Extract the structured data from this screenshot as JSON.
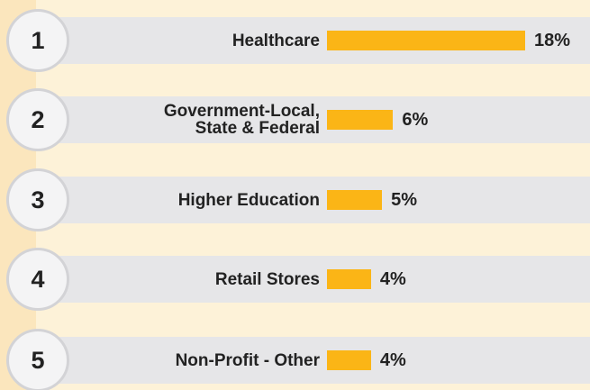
{
  "chart_data": {
    "type": "bar",
    "ranks": [
      1,
      2,
      3,
      4,
      5
    ],
    "categories": [
      "Healthcare",
      "Government-Local,\nState & Federal",
      "Higher Education",
      "Retail Stores",
      "Non-Profit - Other"
    ],
    "values": [
      18,
      6,
      5,
      4,
      4
    ],
    "value_labels": [
      "18%",
      "6%",
      "5%",
      "4%",
      "4%"
    ],
    "color": "#fbb516"
  }
}
